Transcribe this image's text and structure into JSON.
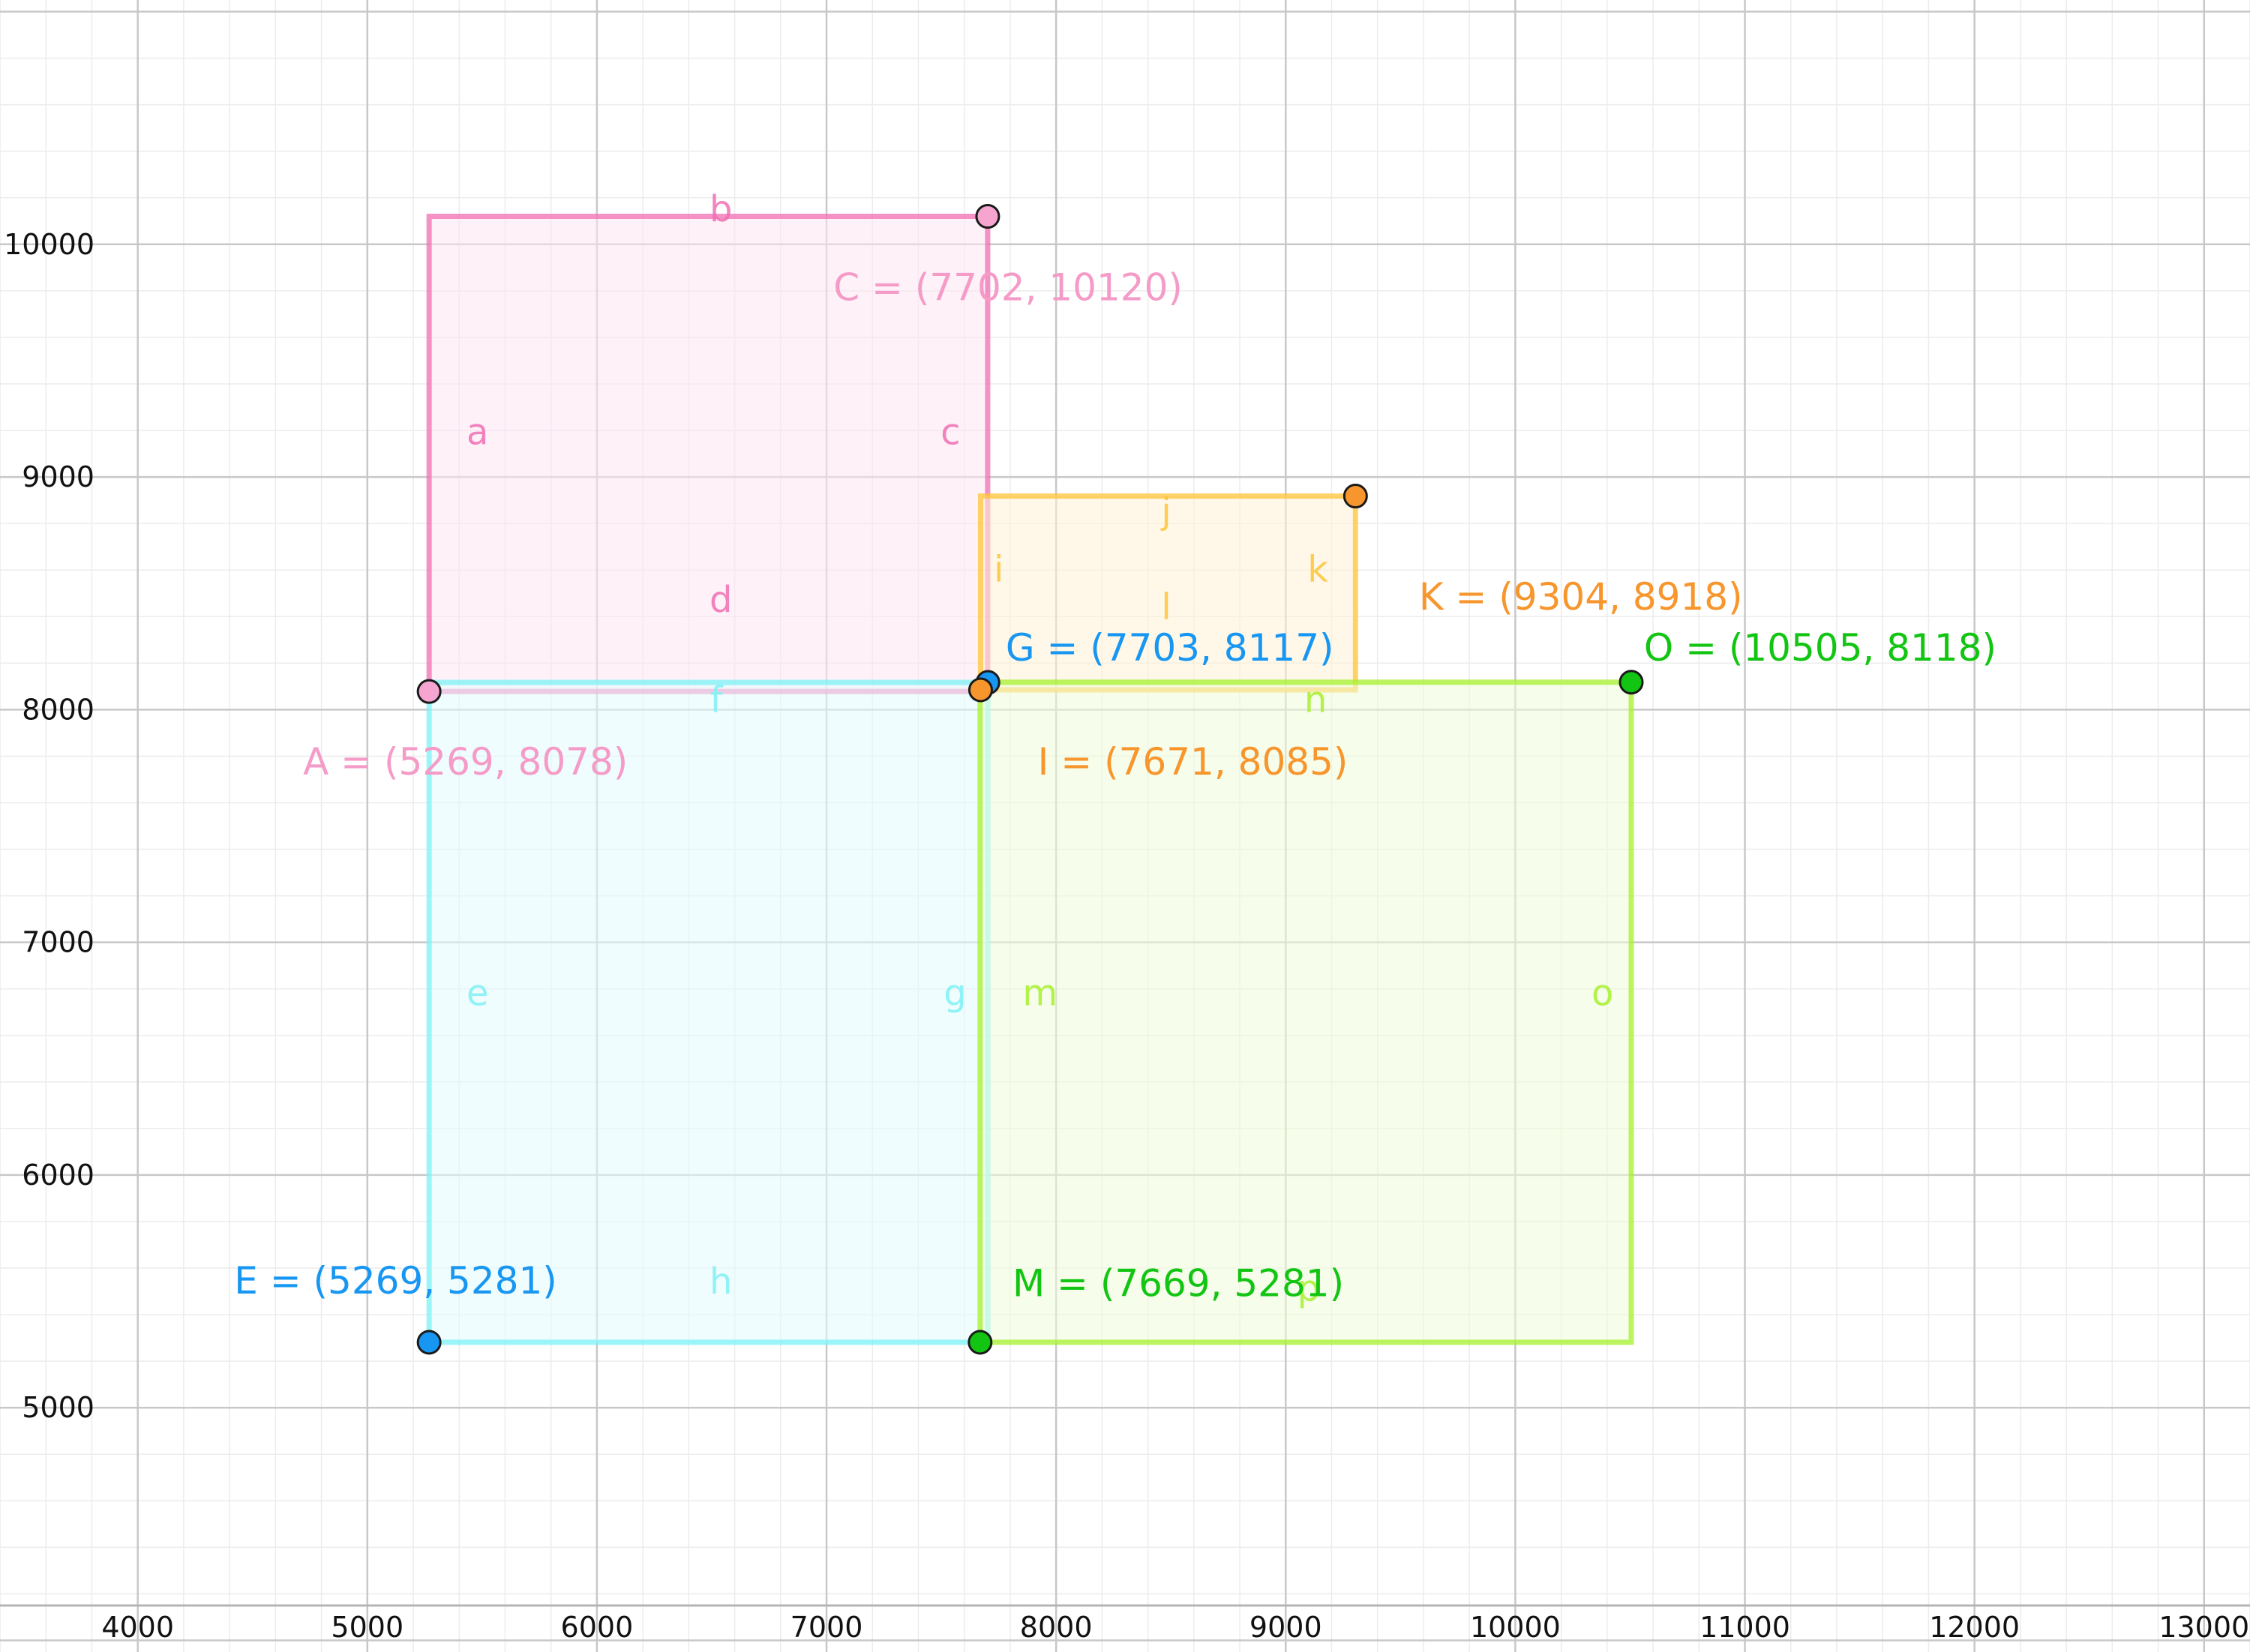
{
  "chart_data": {
    "type": "geometry",
    "xlim": [
      3400,
      13200
    ],
    "ylim": [
      3950,
      11050
    ],
    "grid": true,
    "x_ticks": [
      "4000",
      "5000",
      "6000",
      "7000",
      "8000",
      "9000",
      "10000",
      "11000",
      "12000",
      "13000"
    ],
    "y_ticks": [
      "5000",
      "6000",
      "7000",
      "8000",
      "9000",
      "10000"
    ],
    "rectangles": [
      {
        "corners": [
          [
            5269,
            8078
          ],
          [
            5269,
            10120
          ],
          [
            7702,
            10120
          ],
          [
            7702,
            8078
          ]
        ],
        "color": "#f06fb3",
        "fill": "#fde6f2",
        "edges": [
          {
            "name": "a",
            "at": [
              5480,
              9140
            ]
          },
          {
            "name": "b",
            "at": [
              6540,
              10100
            ]
          },
          {
            "name": "c",
            "at": [
              7540,
              9140
            ]
          },
          {
            "name": "d",
            "at": [
              6540,
              8420
            ]
          }
        ]
      },
      {
        "corners": [
          [
            5269,
            5281
          ],
          [
            5269,
            8117
          ],
          [
            7703,
            8117
          ],
          [
            7703,
            5281
          ]
        ],
        "color": "#7ef1f5",
        "fill": "#e4fbfd",
        "edges": [
          {
            "name": "e",
            "at": [
              5480,
              6730
            ]
          },
          {
            "name": "f",
            "at": [
              6520,
              7990
            ]
          },
          {
            "name": "g",
            "at": [
              7560,
              6730
            ]
          },
          {
            "name": "h",
            "at": [
              6540,
              5490
            ]
          }
        ]
      },
      {
        "corners": [
          [
            7671,
            8085
          ],
          [
            7671,
            8918
          ],
          [
            9304,
            8918
          ],
          [
            9304,
            8085
          ]
        ],
        "color": "#ffc437",
        "fill": "#fff2d6",
        "edges": [
          {
            "name": "i",
            "at": [
              7750,
              8550
            ]
          },
          {
            "name": "j",
            "at": [
              8480,
              8800
            ]
          },
          {
            "name": "k",
            "at": [
              9140,
              8550
            ]
          },
          {
            "name": "l",
            "at": [
              8480,
              8390
            ]
          }
        ]
      },
      {
        "corners": [
          [
            7669,
            5281
          ],
          [
            7669,
            8118
          ],
          [
            10505,
            8118
          ],
          [
            10505,
            5281
          ]
        ],
        "color": "#a6f02d",
        "fill": "#eefbd8",
        "edges": [
          {
            "name": "m",
            "at": [
              7930,
              6730
            ]
          },
          {
            "name": "n",
            "at": [
              9130,
              7990
            ]
          },
          {
            "name": "o",
            "at": [
              10380,
              6730
            ]
          },
          {
            "name": "p",
            "at": [
              9100,
              5460
            ]
          }
        ]
      }
    ],
    "points": [
      {
        "label": "A = (5269, 8078)",
        "x": 5269,
        "y": 8078,
        "color": "#f5a5cf",
        "text_color": "#f59bc8",
        "at": [
          4720,
          7720
        ]
      },
      {
        "label": "C = (7702, 10120)",
        "x": 7702,
        "y": 10120,
        "color": "#f5a5cf",
        "text_color": "#f59bc8",
        "at": [
          7030,
          9760
        ]
      },
      {
        "label": "E = (5269, 5281)",
        "x": 5269,
        "y": 5281,
        "color": "#1796f2",
        "text_color": "#1796f2",
        "at": [
          4420,
          5490
        ]
      },
      {
        "label": "G = (7703, 8117)",
        "x": 7703,
        "y": 8117,
        "color": "#1796f2",
        "text_color": "#1796f2",
        "at": [
          7780,
          8210
        ]
      },
      {
        "label": "I = (7671, 8085)",
        "x": 7671,
        "y": 8085,
        "color": "#f7962d",
        "text_color": "#f7962d",
        "at": [
          7920,
          7720
        ]
      },
      {
        "label": "K = (9304, 8918)",
        "x": 9304,
        "y": 8918,
        "color": "#f7962d",
        "text_color": "#f7962d",
        "at": [
          9580,
          8430
        ]
      },
      {
        "label": "M = (7669, 5281)",
        "x": 7669,
        "y": 5281,
        "color": "#13c513",
        "text_color": "#13c513",
        "at": [
          7810,
          5480
        ]
      },
      {
        "label": "O = (10505, 8118)",
        "x": 10505,
        "y": 8118,
        "color": "#13c513",
        "text_color": "#13c513",
        "at": [
          10560,
          8210
        ]
      }
    ]
  }
}
